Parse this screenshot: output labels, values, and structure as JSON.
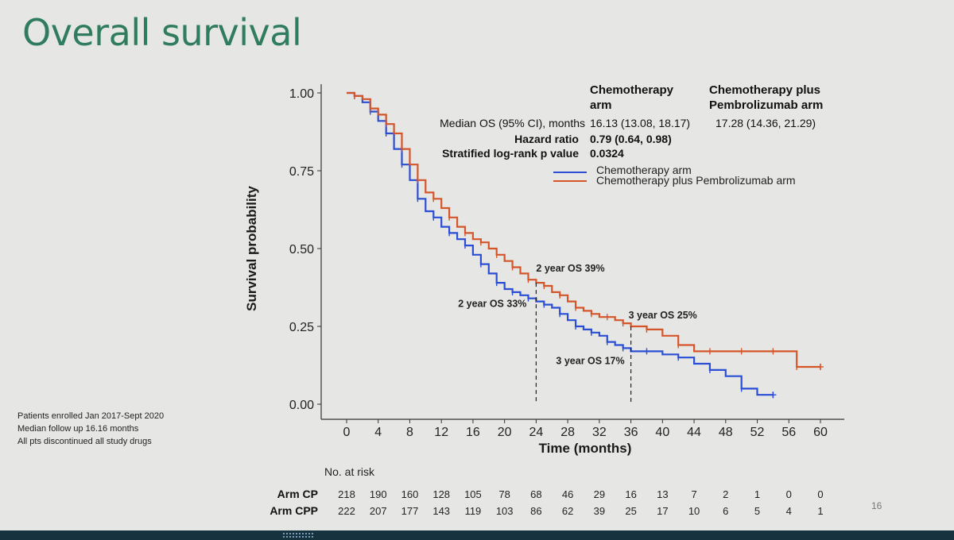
{
  "slide": {
    "title": "Overall survival",
    "page_number": "16",
    "footnotes": [
      "Patients enrolled Jan 2017-Sept 2020",
      "Median follow up 16.16 months",
      "All pts discontinued all study drugs"
    ]
  },
  "colors": {
    "chemo": "#2a4ed4",
    "chemo_pembro": "#d4552a",
    "title": "#2f7d5e"
  },
  "chart_data": {
    "type": "line",
    "subtype": "kaplan-meier",
    "xlabel": "Time (months)",
    "ylabel": "Survival probability",
    "xlim": [
      0,
      60
    ],
    "ylim": [
      0,
      1
    ],
    "x_ticks": [
      0,
      4,
      8,
      12,
      16,
      20,
      24,
      28,
      32,
      36,
      40,
      44,
      48,
      52,
      56,
      60
    ],
    "y_ticks": [
      "0.00",
      "0.25",
      "0.50",
      "0.75",
      "1.00"
    ],
    "stats_table": {
      "col1_header": [
        "Chemotherapy",
        "arm"
      ],
      "col2_header": [
        "Chemotherapy plus",
        "Pembrolizumab arm"
      ],
      "median_label": "Median OS (95% CI), months",
      "median_chemo": "16.13 (13.08, 18.17)",
      "median_combo": "17.28 (14.36, 21.29)",
      "hr_label": "Hazard ratio",
      "hr_value": "0.79 (0.64, 0.98)",
      "p_label": "Stratified log-rank p value",
      "p_value": "0.0324"
    },
    "series": [
      {
        "name": "Chemotherapy arm",
        "color": "#2a4ed4",
        "x": [
          0,
          1,
          2,
          3,
          4,
          5,
          6,
          7,
          8,
          9,
          10,
          11,
          12,
          13,
          14,
          15,
          16,
          17,
          18,
          19,
          20,
          21,
          22,
          23,
          24,
          25,
          26,
          27,
          28,
          29,
          30,
          31,
          32,
          33,
          34,
          35,
          36,
          38,
          40,
          42,
          44,
          46,
          48,
          50,
          52,
          54
        ],
        "y": [
          1.0,
          0.99,
          0.97,
          0.94,
          0.91,
          0.87,
          0.82,
          0.77,
          0.72,
          0.66,
          0.62,
          0.6,
          0.57,
          0.55,
          0.53,
          0.51,
          0.48,
          0.45,
          0.42,
          0.39,
          0.37,
          0.36,
          0.35,
          0.34,
          0.33,
          0.32,
          0.31,
          0.29,
          0.27,
          0.25,
          0.24,
          0.23,
          0.22,
          0.2,
          0.19,
          0.18,
          0.17,
          0.17,
          0.16,
          0.15,
          0.13,
          0.11,
          0.09,
          0.05,
          0.03,
          0.03
        ]
      },
      {
        "name": "Chemotherapy plus Pembrolizumab arm",
        "color": "#d4552a",
        "x": [
          0,
          1,
          2,
          3,
          4,
          5,
          6,
          7,
          8,
          9,
          10,
          11,
          12,
          13,
          14,
          15,
          16,
          17,
          18,
          19,
          20,
          21,
          22,
          23,
          24,
          25,
          26,
          27,
          28,
          29,
          30,
          31,
          32,
          33,
          34,
          35,
          36,
          38,
          40,
          42,
          44,
          46,
          48,
          50,
          52,
          54,
          56,
          57,
          58,
          60
        ],
        "y": [
          1.0,
          0.99,
          0.98,
          0.95,
          0.93,
          0.9,
          0.87,
          0.82,
          0.77,
          0.72,
          0.68,
          0.66,
          0.63,
          0.6,
          0.57,
          0.55,
          0.53,
          0.52,
          0.5,
          0.48,
          0.46,
          0.44,
          0.42,
          0.4,
          0.39,
          0.38,
          0.36,
          0.35,
          0.33,
          0.31,
          0.3,
          0.29,
          0.28,
          0.28,
          0.27,
          0.26,
          0.25,
          0.24,
          0.22,
          0.19,
          0.17,
          0.17,
          0.17,
          0.17,
          0.17,
          0.17,
          0.17,
          0.12,
          0.12,
          0.12
        ]
      }
    ],
    "annotations": [
      {
        "text": "2 year OS 39%",
        "x": 24,
        "y": 0.39
      },
      {
        "text": "2 year OS 33%",
        "x": 24,
        "y": 0.33
      },
      {
        "text": "3 year OS 25%",
        "x": 36,
        "y": 0.25
      },
      {
        "text": "3 year OS 17%",
        "x": 36,
        "y": 0.17
      }
    ],
    "risk_table": {
      "title": "No. at risk",
      "times": [
        0,
        4,
        8,
        12,
        16,
        20,
        24,
        28,
        32,
        36,
        40,
        44,
        48,
        52,
        56,
        60
      ],
      "rows": [
        {
          "label": "Arm CP",
          "values": [
            218,
            190,
            160,
            128,
            105,
            78,
            68,
            46,
            29,
            16,
            13,
            7,
            2,
            1,
            0,
            0
          ]
        },
        {
          "label": "Arm CPP",
          "values": [
            222,
            207,
            177,
            143,
            119,
            103,
            86,
            62,
            39,
            25,
            17,
            10,
            6,
            5,
            4,
            1
          ]
        }
      ]
    }
  }
}
